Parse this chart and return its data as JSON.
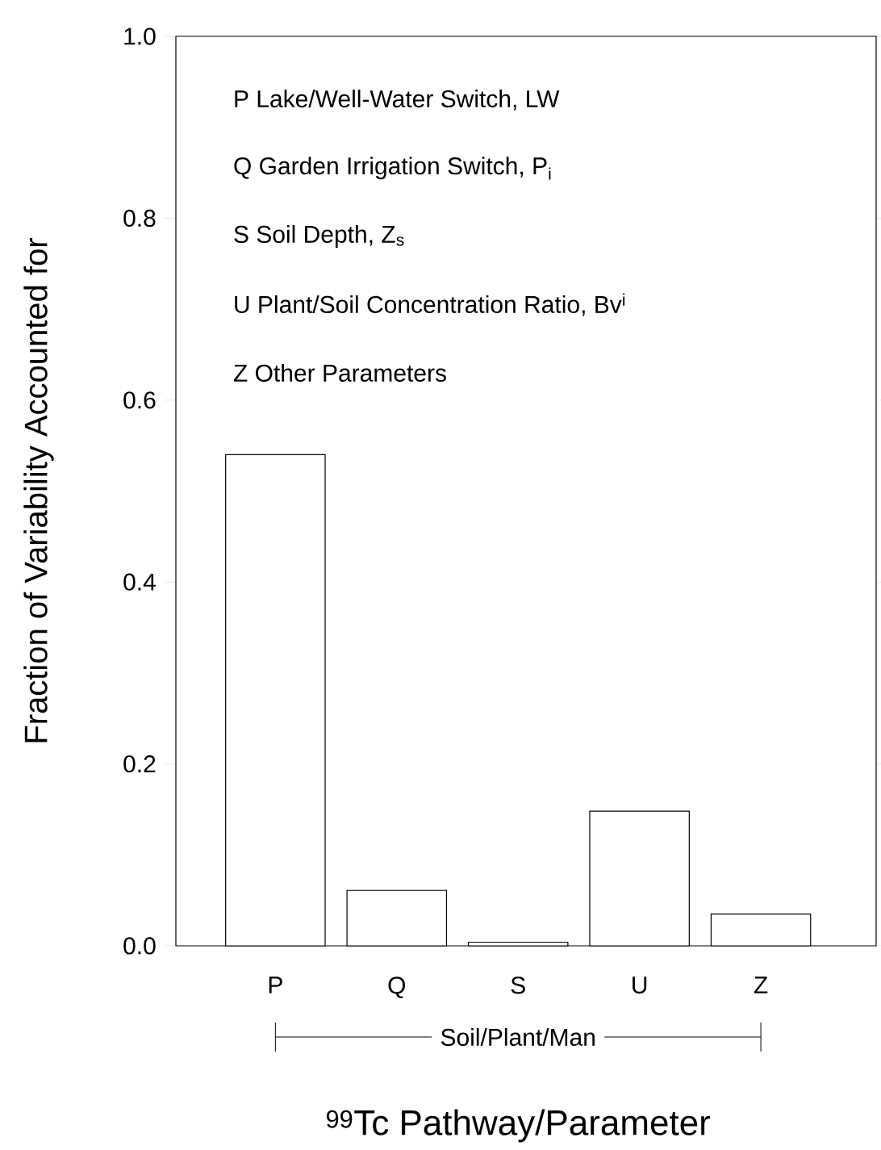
{
  "chart_data": {
    "type": "bar",
    "xlabel": "$^{99}$Tc Pathway/Parameter",
    "ylabel": "Fraction of Variability Accounted for",
    "categories": [
      "P",
      "Q",
      "S",
      "U",
      "Z"
    ],
    "values": [
      0.54,
      0.061,
      0.004,
      0.148,
      0.035
    ],
    "color": "#000000",
    "ylim": [
      0,
      1
    ],
    "yticks": [
      {
        "value": 0,
        "label": "0.0"
      },
      {
        "value": 0.2,
        "label": "0.2"
      },
      {
        "value": 0.4,
        "label": "0.4"
      },
      {
        "value": 0.6,
        "label": "0.6"
      },
      {
        "value": 0.8,
        "label": "0.8"
      },
      {
        "value": 1,
        "label": "1.0"
      }
    ],
    "annotations": [
      "P  Lake/Well-Water Switch, LW",
      "Q  Garden Irrigation Switch, P$_{i}$",
      "S  Soil Depth, Z$_{s}$",
      "U  Plant/Soil Concentration Ratio, Bv$^{i}$",
      "Z  Other Parameters",
      "Soil/Plant/Man"
    ]
  }
}
